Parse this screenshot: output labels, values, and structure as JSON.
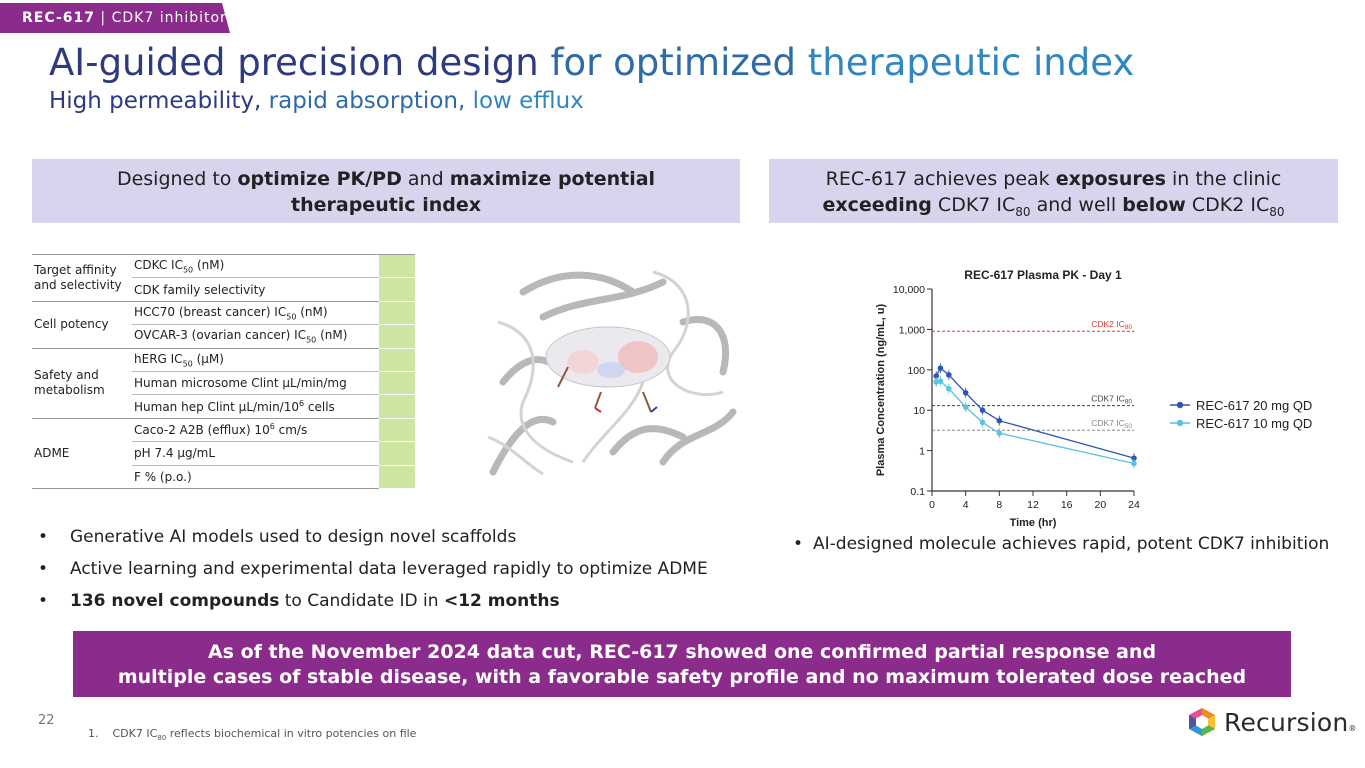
{
  "tag": {
    "code": "REC-617",
    "sep": " | ",
    "label": "CDK7 inhibitor"
  },
  "title": {
    "part1": "AI-guided precision design ",
    "part2": "for optimized ",
    "part3": "therapeutic index"
  },
  "subtitle": {
    "part1": "High permeability, ",
    "part2": "rapid absorption, ",
    "part3": "low efflux"
  },
  "left_panel": {
    "head": {
      "t1": "Designed to ",
      "b1": "optimize PK/PD",
      "t2": " and ",
      "b2": "maximize potential",
      "b3": "therapeutic index"
    },
    "table": [
      {
        "group": "Target affinity and selectivity",
        "rows": [
          {
            "pre": "CDKC IC",
            "sub": "50",
            "post": " (nM)"
          },
          {
            "pre": "CDK family selectivity",
            "sub": "",
            "post": ""
          }
        ]
      },
      {
        "group": "Cell potency",
        "rows": [
          {
            "pre": "HCC70 (breast cancer) IC",
            "sub": "50",
            "post": " (nM)"
          },
          {
            "pre": "OVCAR-3 (ovarian cancer) IC",
            "sub": "50",
            "post": " (nM)"
          }
        ]
      },
      {
        "group": "Safety and metabolism",
        "rows": [
          {
            "pre": "hERG IC",
            "sub": "50",
            "post": " (μM)"
          },
          {
            "pre": "Human microsome Clint μL/min/mg",
            "sub": "",
            "post": ""
          },
          {
            "pre": "Human hep Clint μL/min/10",
            "sup": "6",
            "post": " cells"
          }
        ]
      },
      {
        "group": "ADME",
        "rows": [
          {
            "pre": "Caco-2 A2B (efflux) 10",
            "sup": "6",
            "post": " cm/s"
          },
          {
            "pre": "pH 7.4 μg/mL",
            "sub": "",
            "post": ""
          },
          {
            "pre": "F % (p.o.)",
            "sub": "",
            "post": ""
          }
        ]
      }
    ],
    "bullets": [
      {
        "bold": "",
        "text": "Generative AI models used to design novel scaffolds"
      },
      {
        "bold": "",
        "text": "Active learning and experimental data leveraged rapidly to optimize ADME"
      },
      {
        "bold": "136 novel compounds",
        "text": " to Candidate ID in ",
        "bold2": "<12 months"
      }
    ]
  },
  "right_panel": {
    "head": {
      "t1": "REC-617 achieves peak ",
      "b1": "exposures",
      "t2": " in the clinic",
      "b2": "exceeding",
      "t3": " CDK7 IC",
      "s1": "80",
      "t4": " and well ",
      "b3": "below",
      "t5": " CDK2 IC",
      "s2": "80"
    },
    "bullet": "AI-designed molecule achieves rapid, potent CDK7 inhibition"
  },
  "chart_data": {
    "type": "line",
    "title": "REC-617 Plasma PK - Day 1",
    "xlabel": "Time (hr)",
    "ylabel": "Plasma Concentration (ng/mL, u)",
    "yscale": "log",
    "xlim": [
      0,
      24
    ],
    "ylim": [
      0.1,
      10000
    ],
    "xticks": [
      0,
      4,
      8,
      12,
      16,
      20,
      24
    ],
    "yticks": [
      {
        "v": 0.1,
        "label": "0.1"
      },
      {
        "v": 1,
        "label": "1"
      },
      {
        "v": 10,
        "label": "10"
      },
      {
        "v": 100,
        "label": "100"
      },
      {
        "v": 1000,
        "label": "1,000"
      },
      {
        "v": 10000,
        "label": "10,000"
      }
    ],
    "series": [
      {
        "name": "REC-617 20 mg QD",
        "color": "#2f55b5",
        "x": [
          0.5,
          1,
          2,
          4,
          6,
          8,
          24
        ],
        "y": [
          70,
          110,
          75,
          27,
          10,
          5.5,
          0.65
        ]
      },
      {
        "name": "REC-617 10 mg QD",
        "color": "#59c3e0",
        "x": [
          0.5,
          1,
          2,
          4,
          6,
          8,
          24
        ],
        "y": [
          50,
          52,
          34,
          12,
          5,
          2.7,
          0.48
        ]
      }
    ],
    "reference_lines": [
      {
        "label": "CDK2 IC",
        "sub": "80",
        "y": 900,
        "color": "#d83a3a"
      },
      {
        "label": "CDK7 IC",
        "sub": "80",
        "y": 13,
        "color": "#444444"
      },
      {
        "label": "CDK7 IC",
        "sub": "50",
        "y": 3.2,
        "color": "#888888"
      }
    ],
    "legend": "right"
  },
  "banner": {
    "line1": "As of the November 2024 data cut, REC-617 showed one confirmed partial response and",
    "line2": "multiple cases of stable disease, with a favorable safety profile and no maximum tolerated dose reached"
  },
  "page_number": "22",
  "footnote": {
    "num": "1.",
    "pre": "CDK7 IC",
    "sub": "80",
    "post": " reflects biochemical in vitro potencies on file"
  },
  "logo": {
    "name": "Recursion",
    "mark": "®"
  }
}
